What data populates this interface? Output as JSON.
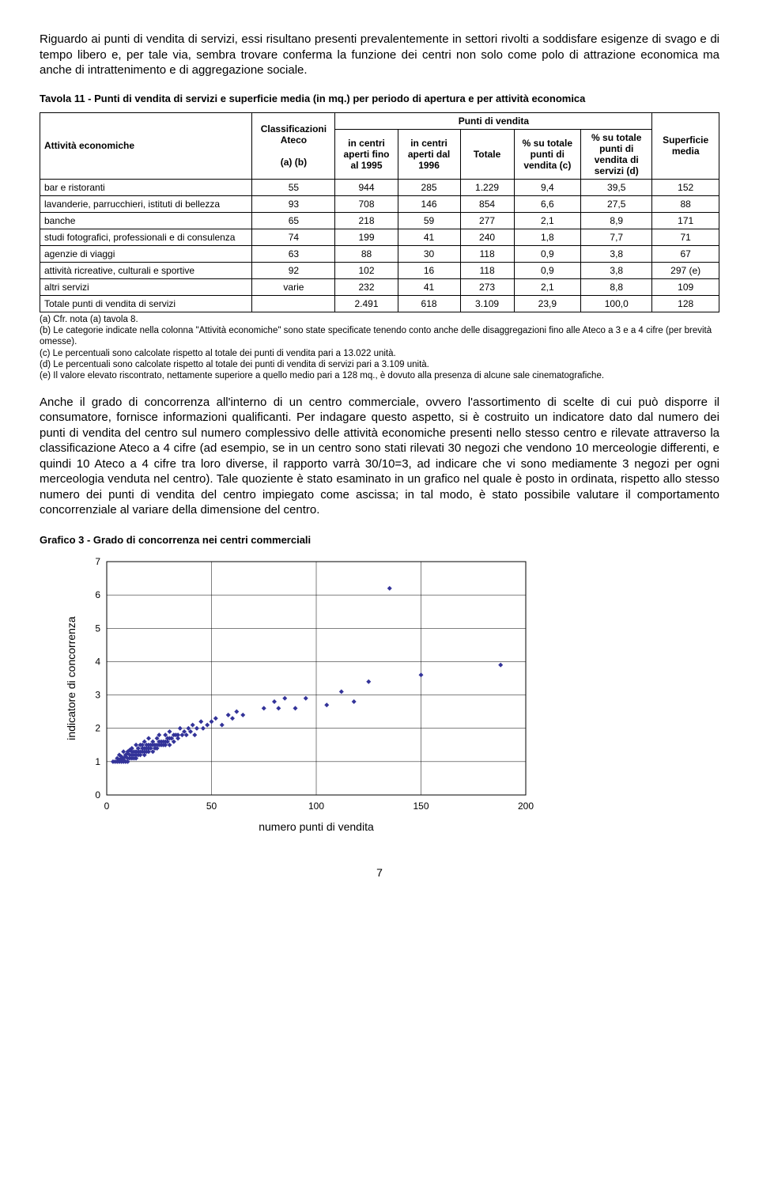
{
  "para1": "Riguardo ai punti di vendita di servizi, essi risultano presenti prevalentemente in settori rivolti a soddisfare esigenze di svago e di tempo libero e, per tale via, sembra trovare conferma la funzione dei centri non solo come polo di attrazione economica ma anche di intrattenimento e di aggregazione sociale.",
  "table_title": "Tavola 11 - Punti di vendita di servizi e superficie media (in mq.) per periodo di apertura e per attività economica",
  "headers": {
    "attivita": "Attività economiche",
    "classif": "Classificazioni Ateco",
    "classif_sub": "(a) (b)",
    "punti": "Punti di vendita",
    "c1": "in centri aperti fino al 1995",
    "c2": "in centri aperti dal 1996",
    "c3": "Totale",
    "c4": "% su totale punti di vendita (c)",
    "c5": "% su totale punti di vendita di servizi (d)",
    "superficie": "Superficie media"
  },
  "rows": [
    {
      "label": "bar e ristoranti",
      "ateco": "55",
      "v1": "944",
      "v2": "285",
      "v3": "1.229",
      "v4": "9,4",
      "v5": "39,5",
      "sup": "152"
    },
    {
      "label": "lavanderie, parrucchieri, istituti di bellezza",
      "ateco": "93",
      "v1": "708",
      "v2": "146",
      "v3": "854",
      "v4": "6,6",
      "v5": "27,5",
      "sup": "88"
    },
    {
      "label": "banche",
      "ateco": "65",
      "v1": "218",
      "v2": "59",
      "v3": "277",
      "v4": "2,1",
      "v5": "8,9",
      "sup": "171"
    },
    {
      "label": "studi fotografici, professionali e di consulenza",
      "ateco": "74",
      "v1": "199",
      "v2": "41",
      "v3": "240",
      "v4": "1,8",
      "v5": "7,7",
      "sup": "71"
    },
    {
      "label": "agenzie di viaggi",
      "ateco": "63",
      "v1": "88",
      "v2": "30",
      "v3": "118",
      "v4": "0,9",
      "v5": "3,8",
      "sup": "67"
    },
    {
      "label": "attività ricreative, culturali e sportive",
      "ateco": "92",
      "v1": "102",
      "v2": "16",
      "v3": "118",
      "v4": "0,9",
      "v5": "3,8",
      "sup": "297 (e)"
    },
    {
      "label": "altri servizi",
      "ateco": "varie",
      "v1": "232",
      "v2": "41",
      "v3": "273",
      "v4": "2,1",
      "v5": "8,8",
      "sup": "109"
    },
    {
      "label": "Totale punti di vendita di servizi",
      "ateco": "",
      "v1": "2.491",
      "v2": "618",
      "v3": "3.109",
      "v4": "23,9",
      "v5": "100,0",
      "sup": "128"
    }
  ],
  "notes": [
    "(a) Cfr. nota (a) tavola 8.",
    "(b) Le categorie indicate nella colonna \"Attività economiche\" sono state specificate tenendo conto anche delle disaggregazioni fino alle Ateco a 3 e a 4 cifre (per brevità omesse).",
    "(c) Le percentuali sono calcolate rispetto al totale dei punti di vendita pari a 13.022 unità.",
    "(d) Le percentuali sono calcolate rispetto al totale dei punti di vendita di servizi pari a 3.109 unità.",
    "(e) Il valore elevato riscontrato, nettamente superiore a quello medio pari a 128 mq., è dovuto alla presenza di alcune sale cinematografiche."
  ],
  "para2": "Anche il grado di concorrenza all'interno di un centro commerciale, ovvero l'assortimento di scelte di cui può disporre il consumatore, fornisce informazioni qualificanti. Per indagare questo aspetto, si è costruito un indicatore dato dal numero dei punti di vendita del centro sul numero complessivo delle attività economiche presenti nello stesso centro e rilevate attraverso la classificazione Ateco a 4 cifre (ad esempio, se in un centro sono stati rilevati 30 negozi che vendono 10 merceologie differenti, e quindi 10 Ateco a 4 cifre tra loro diverse, il rapporto varrà 30/10=3, ad indicare che vi sono mediamente 3 negozi per ogni merceologia venduta nel centro). Tale quoziente è stato esaminato in un grafico nel quale è posto in ordinata, rispetto allo stesso numero dei punti di vendita del centro impiegato come ascissa; in tal modo, è stato possibile valutare il comportamento concorrenziale al variare della dimensione del centro.",
  "chart_title": "Grafico 3 - Grado di concorrenza nei centri commerciali",
  "chart": {
    "type": "scatter",
    "xlabel": "numero punti di vendita",
    "ylabel": "indicatore di concorrenza",
    "xlim": [
      0,
      200
    ],
    "ylim": [
      0,
      7
    ],
    "xticks": [
      0,
      50,
      100,
      150,
      200
    ],
    "yticks": [
      0,
      1,
      2,
      3,
      4,
      5,
      6,
      7
    ],
    "marker_color": "#333399",
    "marker_size": 3,
    "background_color": "#ffffff",
    "grid_color": "#000000",
    "axis_fontsize": 12,
    "label_fontsize": 14,
    "points": [
      [
        3,
        1.0
      ],
      [
        4,
        1.0
      ],
      [
        5,
        1.0
      ],
      [
        5,
        1.1
      ],
      [
        6,
        1.0
      ],
      [
        6,
        1.2
      ],
      [
        7,
        1.0
      ],
      [
        7,
        1.1
      ],
      [
        8,
        1.0
      ],
      [
        8,
        1.1
      ],
      [
        8,
        1.3
      ],
      [
        9,
        1.0
      ],
      [
        9,
        1.2
      ],
      [
        10,
        1.0
      ],
      [
        10,
        1.1
      ],
      [
        10,
        1.3
      ],
      [
        11,
        1.1
      ],
      [
        11,
        1.2
      ],
      [
        12,
        1.1
      ],
      [
        12,
        1.3
      ],
      [
        12,
        1.4
      ],
      [
        13,
        1.2
      ],
      [
        13,
        1.3
      ],
      [
        14,
        1.1
      ],
      [
        14,
        1.3
      ],
      [
        14,
        1.5
      ],
      [
        15,
        1.2
      ],
      [
        15,
        1.4
      ],
      [
        16,
        1.2
      ],
      [
        16,
        1.5
      ],
      [
        17,
        1.3
      ],
      [
        17,
        1.5
      ],
      [
        18,
        1.2
      ],
      [
        18,
        1.4
      ],
      [
        18,
        1.6
      ],
      [
        19,
        1.3
      ],
      [
        19,
        1.5
      ],
      [
        20,
        1.3
      ],
      [
        20,
        1.5
      ],
      [
        20,
        1.7
      ],
      [
        21,
        1.4
      ],
      [
        22,
        1.3
      ],
      [
        22,
        1.6
      ],
      [
        23,
        1.5
      ],
      [
        24,
        1.4
      ],
      [
        24,
        1.7
      ],
      [
        25,
        1.5
      ],
      [
        25,
        1.8
      ],
      [
        26,
        1.5
      ],
      [
        27,
        1.6
      ],
      [
        28,
        1.5
      ],
      [
        28,
        1.8
      ],
      [
        29,
        1.6
      ],
      [
        30,
        1.5
      ],
      [
        30,
        1.9
      ],
      [
        31,
        1.7
      ],
      [
        32,
        1.6
      ],
      [
        33,
        1.8
      ],
      [
        34,
        1.7
      ],
      [
        35,
        2.0
      ],
      [
        36,
        1.8
      ],
      [
        37,
        1.9
      ],
      [
        38,
        1.8
      ],
      [
        39,
        2.0
      ],
      [
        40,
        1.9
      ],
      [
        41,
        2.1
      ],
      [
        42,
        1.8
      ],
      [
        43,
        2.0
      ],
      [
        45,
        2.2
      ],
      [
        46,
        2.0
      ],
      [
        48,
        2.1
      ],
      [
        50,
        2.2
      ],
      [
        52,
        2.3
      ],
      [
        55,
        2.1
      ],
      [
        58,
        2.4
      ],
      [
        60,
        2.3
      ],
      [
        62,
        2.5
      ],
      [
        65,
        2.4
      ],
      [
        75,
        2.6
      ],
      [
        80,
        2.8
      ],
      [
        82,
        2.6
      ],
      [
        85,
        2.9
      ],
      [
        90,
        2.6
      ],
      [
        95,
        2.9
      ],
      [
        105,
        2.7
      ],
      [
        112,
        3.1
      ],
      [
        118,
        2.8
      ],
      [
        125,
        3.4
      ],
      [
        135,
        6.2
      ],
      [
        150,
        3.6
      ],
      [
        188,
        3.9
      ],
      [
        6,
        1.05
      ],
      [
        7,
        1.15
      ],
      [
        8,
        1.05
      ],
      [
        9,
        1.15
      ],
      [
        10,
        1.25
      ],
      [
        11,
        1.35
      ],
      [
        12,
        1.2
      ],
      [
        13,
        1.1
      ],
      [
        14,
        1.2
      ],
      [
        15,
        1.3
      ],
      [
        16,
        1.3
      ],
      [
        17,
        1.4
      ],
      [
        18,
        1.3
      ],
      [
        19,
        1.4
      ],
      [
        20,
        1.4
      ],
      [
        21,
        1.5
      ],
      [
        22,
        1.5
      ],
      [
        23,
        1.4
      ],
      [
        24,
        1.5
      ],
      [
        25,
        1.6
      ],
      [
        26,
        1.6
      ],
      [
        27,
        1.5
      ],
      [
        28,
        1.6
      ],
      [
        29,
        1.7
      ],
      [
        30,
        1.7
      ],
      [
        32,
        1.8
      ],
      [
        34,
        1.8
      ]
    ]
  },
  "page_number": "7"
}
